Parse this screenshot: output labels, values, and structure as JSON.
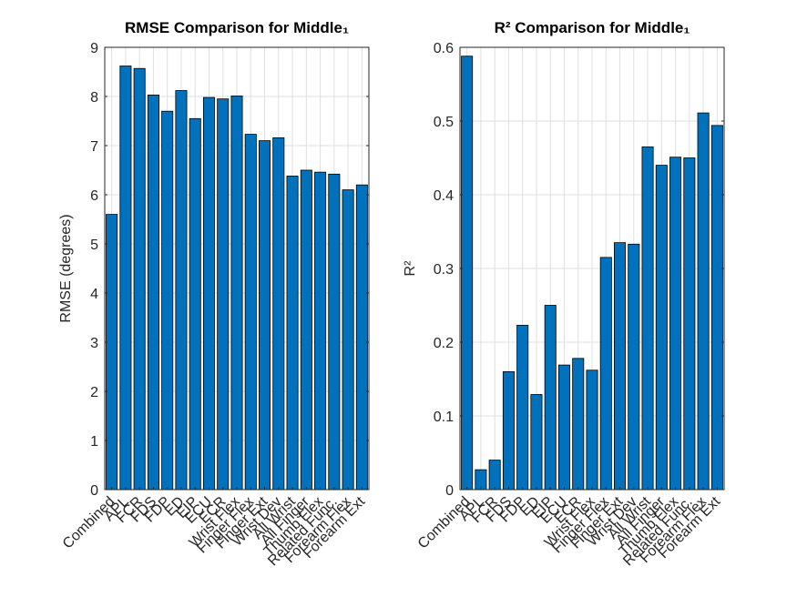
{
  "chart_data": [
    {
      "type": "bar",
      "title": "RMSE Comparison for Middle₁",
      "ylabel": "RMSE (degrees)",
      "categories": [
        "Combined",
        "APL",
        "FCR",
        "FDS",
        "FDP",
        "ED",
        "EIP",
        "ECU",
        "ECR",
        "Wrist Flex",
        "Finger Flex",
        "Finger Ext",
        "Wrist Dev",
        "All Wrist",
        "All Finger",
        "Thumb Flex",
        "Related Func.",
        "Forearm Flex",
        "Forearm Ext"
      ],
      "values": [
        5.6,
        8.62,
        8.57,
        8.03,
        7.7,
        8.12,
        7.55,
        7.98,
        7.95,
        8.01,
        7.23,
        7.1,
        7.16,
        6.38,
        6.5,
        6.46,
        6.42,
        6.1,
        6.2
      ],
      "color": "#0072bd",
      "ylim": [
        0,
        9
      ],
      "yticks": [
        0,
        1,
        2,
        3,
        4,
        5,
        6,
        7,
        8,
        9
      ],
      "grid": true
    },
    {
      "type": "bar",
      "title": "R² Comparison for Middle₁",
      "ylabel": "R²",
      "categories": [
        "Combined",
        "APL",
        "FCR",
        "FDS",
        "FDP",
        "ED",
        "EIP",
        "ECU",
        "ECR",
        "Wrist Flex",
        "Finger Flex",
        "Finger Ext",
        "Wrist Dev",
        "All Wrist",
        "All Finger",
        "Thumb Flex",
        "Related Func.",
        "Forearm Flex",
        "Forearm Ext"
      ],
      "values": [
        0.588,
        0.027,
        0.04,
        0.16,
        0.223,
        0.129,
        0.25,
        0.169,
        0.178,
        0.162,
        0.315,
        0.335,
        0.333,
        0.465,
        0.44,
        0.451,
        0.45,
        0.511,
        0.494
      ],
      "color": "#0072bd",
      "ylim": [
        0,
        0.6
      ],
      "yticks": [
        0,
        0.1,
        0.2,
        0.3,
        0.4,
        0.5,
        0.6
      ],
      "grid": true
    }
  ]
}
